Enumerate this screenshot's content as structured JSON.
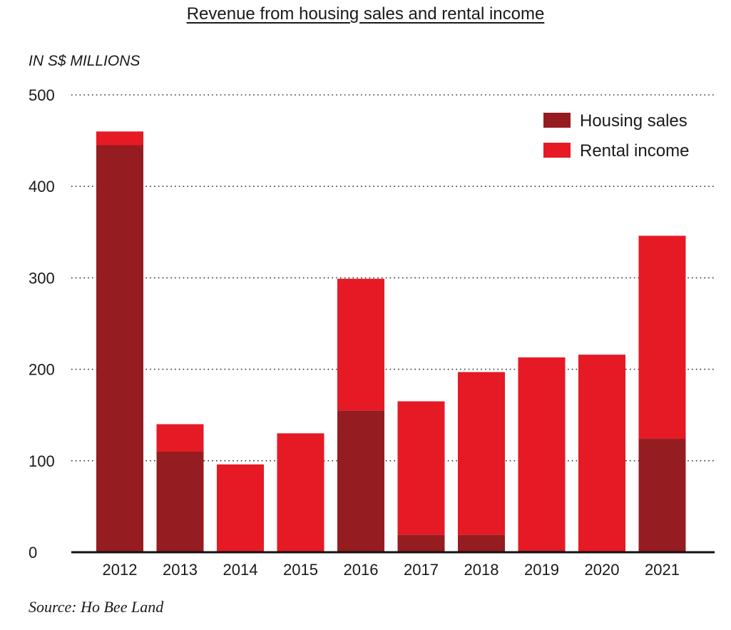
{
  "chart_data": {
    "type": "bar",
    "stacked": true,
    "title": "Revenue from housing sales and rental income",
    "ylabel": "IN S$ MILLIONS",
    "xlabel": "",
    "categories": [
      "2012",
      "2013",
      "2014",
      "2015",
      "2016",
      "2017",
      "2018",
      "2019",
      "2020",
      "2021"
    ],
    "series": [
      {
        "name": "Housing sales",
        "color": "#951c20",
        "values": [
          445,
          110,
          0,
          0,
          155,
          19,
          19,
          2,
          0,
          124
        ]
      },
      {
        "name": "Rental income",
        "color": "#e61a24",
        "values": [
          15,
          30,
          96,
          130,
          144,
          146,
          178,
          211,
          216,
          222
        ]
      }
    ],
    "ylim": [
      0,
      500
    ],
    "yticks": [
      0,
      100,
      200,
      300,
      400,
      500
    ],
    "grid": true,
    "legend": "top-right",
    "source": "Source: Ho Bee Land"
  }
}
